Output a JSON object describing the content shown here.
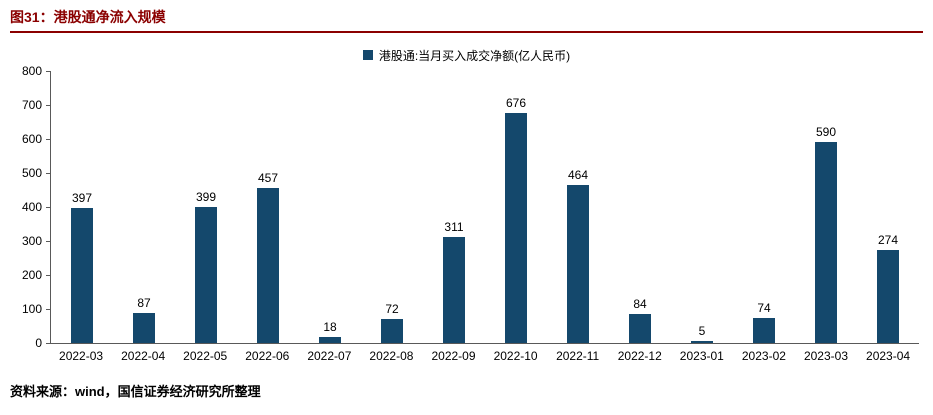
{
  "title": "图31：港股通净流入规模",
  "source": "资料来源：wind，国信证券经济研究所整理",
  "colors": {
    "bar": "#14486C",
    "title": "#8B0000",
    "rule": "#8B0000"
  },
  "chart_data": {
    "type": "bar",
    "title": "图31：港股通净流入规模",
    "legend": [
      "港股通:当月买入成交净额(亿人民币)"
    ],
    "legend_position": "top-center",
    "categories": [
      "2022-03",
      "2022-04",
      "2022-05",
      "2022-06",
      "2022-07",
      "2022-08",
      "2022-09",
      "2022-10",
      "2022-11",
      "2022-12",
      "2023-01",
      "2023-02",
      "2023-03",
      "2023-04"
    ],
    "values": [
      397,
      87,
      399,
      457,
      18,
      72,
      311,
      676,
      464,
      84,
      5,
      74,
      590,
      274
    ],
    "xlabel": "",
    "ylabel": "",
    "ylim": [
      0,
      800
    ],
    "y_ticks": [
      0,
      100,
      200,
      300,
      400,
      500,
      600,
      700,
      800
    ],
    "grid": false
  }
}
